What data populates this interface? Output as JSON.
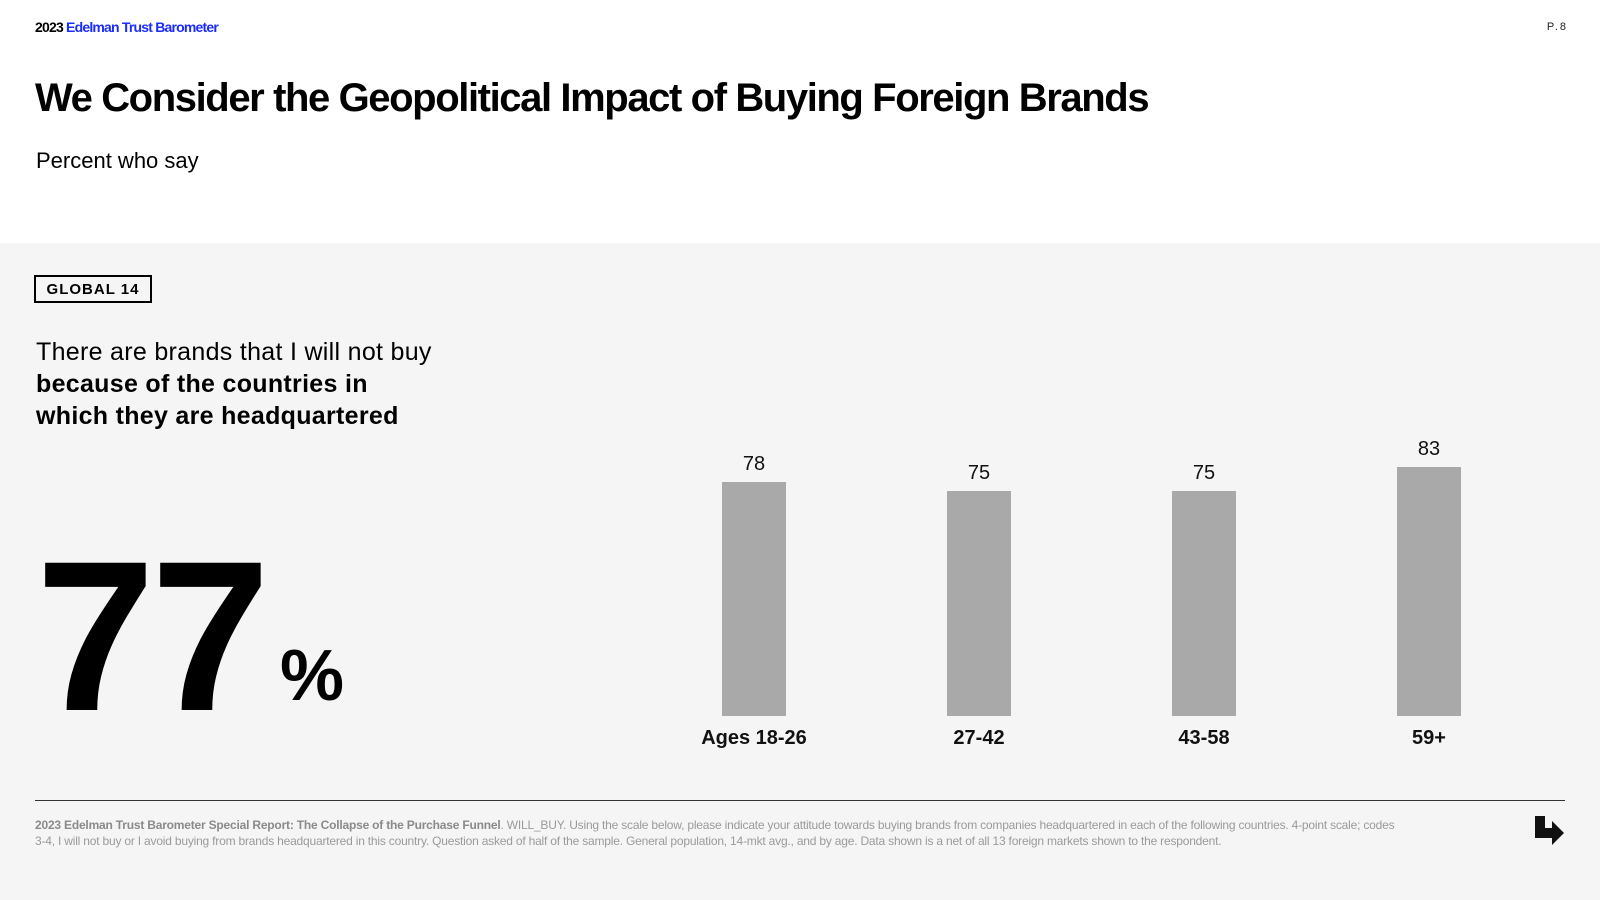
{
  "header": {
    "brand_year": "2023",
    "brand_name": "Edelman Trust Barometer",
    "page_number": "P.8",
    "title": "We Consider the Geopolitical Impact of Buying Foreign Brands",
    "subtitle": "Percent who say"
  },
  "main": {
    "badge": "GLOBAL 14",
    "statement_plain": "There are brands that I will not buy",
    "statement_bold": "because of the countries in which they are headquartered",
    "big_number": "77",
    "big_unit": "%"
  },
  "chart_data": {
    "type": "bar",
    "categories": [
      "Ages 18-26",
      "27-42",
      "43-58",
      "59+"
    ],
    "values": [
      78,
      75,
      75,
      83
    ],
    "ylim": [
      0,
      100
    ],
    "grid": false,
    "bar_color": "#a9a9a9"
  },
  "footer": {
    "source_bold": "2023 Edelman Trust Barometer Special Report: The Collapse of the Purchase Funnel",
    "source_text": ". WILL_BUY. Using the scale below, please indicate your attitude towards buying brands from companies headquartered in each of the following countries. 4-point scale; codes 3-4, I will not buy or I avoid buying from brands headquartered in this country. Question asked of half of the sample. General population, 14-mkt avg., and by age. Data shown is a net of all 13 foreign markets shown to the respondent.",
    "next_icon": "arrow-turn-down-right-icon"
  },
  "colors": {
    "brand_blue": "#1a2cff",
    "panel_bg": "#f5f5f5",
    "footnote": "#9a9a9a"
  }
}
